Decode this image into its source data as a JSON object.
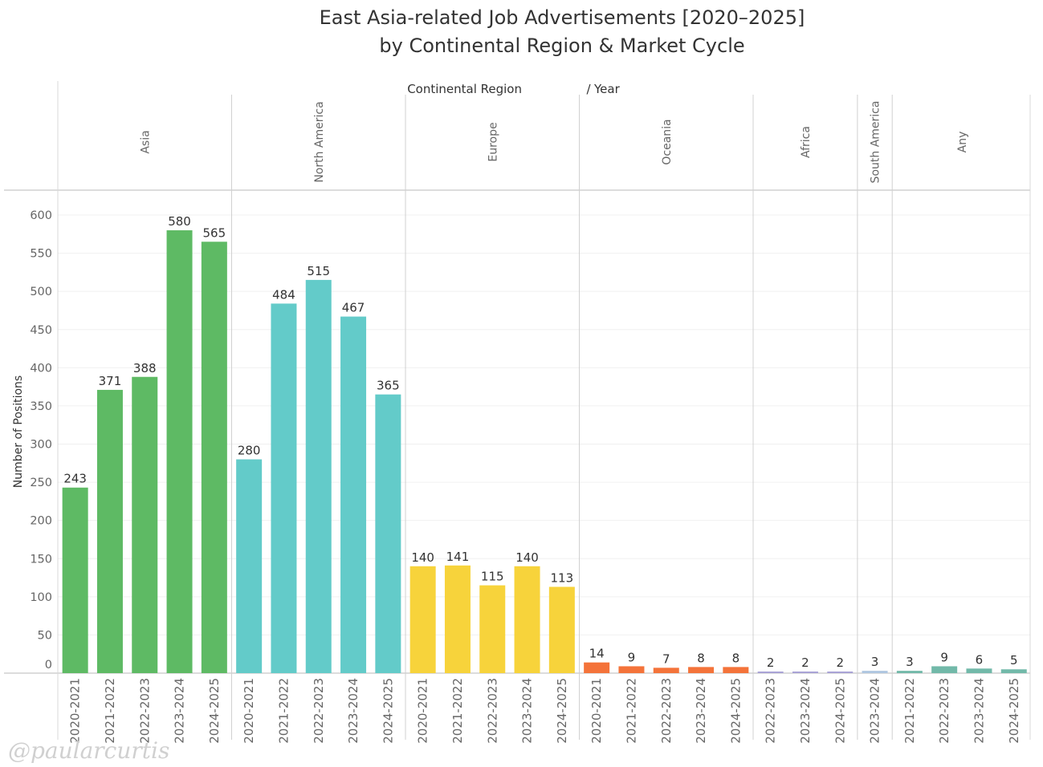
{
  "title_line1": "East Asia-related Job Advertisements [2020–2025]",
  "title_line2": "by Continental Region & Market Cycle",
  "watermark": "@paularcurtis",
  "chart_data": {
    "type": "bar",
    "column_header": "Continental Region",
    "column_header_sep": "/",
    "column_header_sub": "Year",
    "ylabel": "Number of Positions",
    "ylim": [
      0,
      620
    ],
    "yticks": [
      0,
      50,
      100,
      150,
      200,
      250,
      300,
      350,
      400,
      450,
      500,
      550,
      600
    ],
    "grid": true,
    "panels": [
      {
        "region": "Asia",
        "color": "#5eba64",
        "years": [
          "2020-2021",
          "2021-2022",
          "2022-2023",
          "2023-2024",
          "2024-2025"
        ],
        "values": [
          243,
          371,
          388,
          580,
          565
        ]
      },
      {
        "region": "North America",
        "color": "#63cbc9",
        "years": [
          "2020-2021",
          "2021-2022",
          "2022-2023",
          "2023-2024",
          "2024-2025"
        ],
        "values": [
          280,
          484,
          515,
          467,
          365
        ]
      },
      {
        "region": "Europe",
        "color": "#f7d33b",
        "years": [
          "2020-2021",
          "2021-2022",
          "2022-2023",
          "2023-2024",
          "2024-2025"
        ],
        "values": [
          140,
          141,
          115,
          140,
          113
        ]
      },
      {
        "region": "Oceania",
        "color": "#f4733a",
        "years": [
          "2020-2021",
          "2021-2022",
          "2022-2023",
          "2023-2024",
          "2024-2025"
        ],
        "values": [
          14,
          9,
          7,
          8,
          8
        ]
      },
      {
        "region": "Africa",
        "color": "#a9a3d6",
        "years": [
          "2022-2023",
          "2023-2024",
          "2024-2025"
        ],
        "values": [
          2,
          2,
          2
        ]
      },
      {
        "region": "South America",
        "color": "#aec6e0",
        "years": [
          "2023-2024"
        ],
        "values": [
          3
        ]
      },
      {
        "region": "Any",
        "color": "#72b9a9",
        "years": [
          "2021-2022",
          "2022-2023",
          "2023-2024",
          "2024-2025"
        ],
        "values": [
          3,
          9,
          6,
          5
        ]
      }
    ]
  }
}
